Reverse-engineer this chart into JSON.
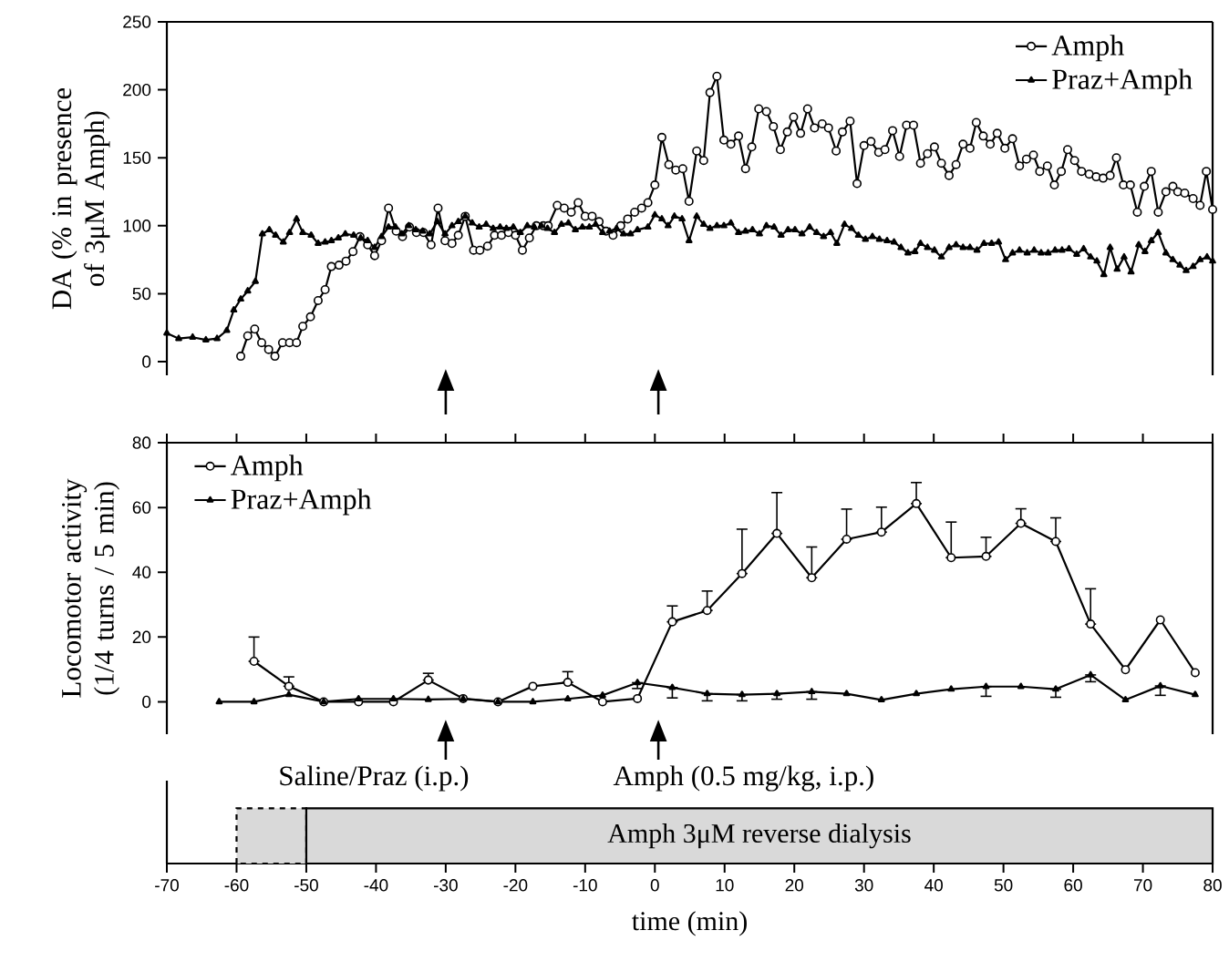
{
  "chart_data": [
    {
      "type": "line",
      "ylabel": "DA (% in presence of 3μM Amph)",
      "xlim": [
        -70,
        80
      ],
      "ylim": [
        -10,
        250
      ],
      "yticks": [
        0,
        50,
        100,
        150,
        200,
        250
      ],
      "tick_labels": "y",
      "legend": "top right",
      "series": [
        {
          "name": "Amph",
          "color": "#000000",
          "marker": "circle",
          "x": [
            -59.4,
            -58.4,
            -57.4,
            -56.4,
            -55.4,
            -54.5,
            -53.4,
            -52.4,
            -51.4,
            -50.5,
            -49.4,
            -48.3,
            -47.3,
            -46.4,
            -45.3,
            -44.3,
            -43.3,
            -42.3,
            -41.2,
            -40.2,
            -39.2,
            -38.2,
            -37.1,
            -36.2,
            -35.2,
            -34.2,
            -33.2,
            -32.1,
            -31.1,
            -30.1,
            -29.1,
            -28.2,
            -27.2,
            -26,
            -25.1,
            -24,
            -23,
            -22,
            -21,
            -20,
            -19,
            -18,
            -17,
            -16,
            -15.3,
            -14,
            -13,
            -12,
            -11,
            -10,
            -9,
            -8,
            -7,
            -6,
            -4.9,
            -3.9,
            -2.9,
            -1.9,
            -1,
            0,
            1,
            2,
            3,
            4,
            4.9,
            6,
            7,
            7.9,
            8.9,
            9.9,
            10.9,
            12,
            13,
            13.9,
            14.9,
            16,
            17,
            18,
            19,
            19.9,
            20.9,
            21.9,
            22.9,
            24,
            24.9,
            26,
            26.9,
            28,
            29,
            30,
            31,
            32.1,
            33,
            34.1,
            35.1,
            36.1,
            37.1,
            38.1,
            39.1,
            40.1,
            41.1,
            42.2,
            43.2,
            44.2,
            45.2,
            46.1,
            47.1,
            48.1,
            49.1,
            50.2,
            51.3,
            52.3,
            53.3,
            54.3,
            55.2,
            56.3,
            57.3,
            58.3,
            59.2,
            60.2,
            61.2,
            62.3,
            63.3,
            64.3,
            65.3,
            66.2,
            67.2,
            68.2,
            69.2,
            70.2,
            71.2,
            72.2,
            73.3,
            74.3,
            75,
            76,
            77.2,
            78.2,
            79.1,
            80
          ],
          "values": [
            4,
            19,
            24,
            14,
            9,
            4,
            14,
            14,
            14,
            26,
            33,
            45,
            53,
            70,
            71,
            74,
            81,
            92,
            86,
            78,
            89,
            113,
            96,
            92,
            99,
            95,
            95,
            86,
            113,
            89,
            87,
            93,
            107,
            82,
            82,
            85,
            93,
            93,
            95,
            93,
            82,
            91,
            100,
            100,
            100,
            115,
            113,
            110,
            117,
            107,
            107,
            103,
            96,
            93,
            100,
            105,
            110,
            113,
            117,
            130,
            165,
            145,
            141,
            142,
            118,
            155,
            148,
            198,
            210,
            163,
            160,
            166,
            142,
            158,
            186,
            184,
            173,
            156,
            169,
            180,
            168,
            186,
            172,
            175,
            172,
            155,
            169,
            177,
            131,
            159,
            162,
            154,
            156,
            170,
            151,
            174,
            174,
            146,
            153,
            158,
            146,
            137,
            145,
            160,
            157,
            176,
            166,
            160,
            168,
            157,
            164,
            144,
            149,
            152,
            140,
            144,
            130,
            140,
            156,
            148,
            140,
            138,
            136,
            135,
            137,
            150,
            130,
            130,
            110,
            129,
            140,
            110,
            125,
            129,
            125,
            124,
            120,
            115,
            140,
            112
          ]
        },
        {
          "name": "Praz+Amph",
          "color": "#000000",
          "marker": "triangle",
          "x": [
            -70,
            -68.3,
            -66.3,
            -64.4,
            -62.8,
            -61.4,
            -60.4,
            -59.4,
            -58.4,
            -57.3,
            -56.3,
            -55.3,
            -54.4,
            -53.3,
            -52.4,
            -51.4,
            -50.5,
            -49.3,
            -48.3,
            -47.3,
            -46.4,
            -45.4,
            -44.4,
            -43.2,
            -42.2,
            -41.2,
            -40.2,
            -39.2,
            -38.2,
            -37.2,
            -36.3,
            -35.3,
            -34.3,
            -33.3,
            -32.3,
            -31.2,
            -30.1,
            -29.1,
            -28.2,
            -27.2,
            -26.2,
            -25.2,
            -24.2,
            -23.2,
            -22.2,
            -21.3,
            -20.3,
            -19.3,
            -18.3,
            -17.3,
            -16.3,
            -15.4,
            -14.4,
            -13.4,
            -12.4,
            -11.4,
            -10.4,
            -9.4,
            -8.5,
            -7.5,
            -6.5,
            -5.5,
            -4.5,
            -3.5,
            -2.5,
            -1,
            0,
            1,
            1.9,
            2.8,
            3.9,
            4.9,
            6,
            7,
            7.9,
            8.9,
            9.9,
            10.9,
            12,
            13,
            14,
            15,
            16,
            17.1,
            18.1,
            19.1,
            20.1,
            21.1,
            22.2,
            23.2,
            24.2,
            25.2,
            26.1,
            27.2,
            28.2,
            29.2,
            30.2,
            31.2,
            32.2,
            33.3,
            34.3,
            35.3,
            36.3,
            37.3,
            38.1,
            39.1,
            40.1,
            41.1,
            42.2,
            43.2,
            44.2,
            45.2,
            46.2,
            47.2,
            48.3,
            49.3,
            50.3,
            51.3,
            52.3,
            53.4,
            54.4,
            55.4,
            56.4,
            57.4,
            58.4,
            59.4,
            60.5,
            61.5,
            62.5,
            63.4,
            64.4,
            65.3,
            66.3,
            67.3,
            68.3,
            69.4,
            70.3,
            71.2,
            72.2,
            73.3,
            74.3,
            75.3,
            76.2,
            77.2,
            78.2,
            79.2,
            80
          ],
          "values": [
            21,
            17,
            18,
            16,
            17,
            23,
            38,
            46,
            52,
            59,
            94,
            97,
            93,
            88,
            95,
            105,
            95,
            93,
            87,
            88,
            89,
            91,
            94,
            93,
            91,
            89,
            84,
            92,
            99,
            99,
            94,
            100,
            97,
            96,
            94,
            103,
            94,
            100,
            103,
            107,
            102,
            99,
            101,
            98,
            99,
            98,
            99,
            95,
            100,
            99,
            100,
            98,
            95,
            101,
            102,
            97,
            99,
            99,
            101,
            95,
            96,
            98,
            94,
            94,
            97,
            99,
            108,
            105,
            100,
            107,
            105,
            89,
            107,
            101,
            98,
            100,
            100,
            102,
            95,
            96,
            97,
            94,
            100,
            99,
            93,
            97,
            97,
            94,
            99,
            95,
            92,
            95,
            87,
            101,
            98,
            93,
            90,
            92,
            90,
            89,
            88,
            84,
            80,
            81,
            87,
            84,
            82,
            77,
            84,
            86,
            84,
            84,
            82,
            87,
            87,
            88,
            75,
            80,
            82,
            80,
            82,
            80,
            80,
            82,
            82,
            83,
            79,
            83,
            77,
            74,
            64,
            84,
            68,
            77,
            66,
            86,
            81,
            89,
            95,
            80,
            75,
            71,
            67,
            70,
            75,
            77,
            74
          ]
        }
      ]
    },
    {
      "type": "line",
      "ylabel": "Locomotor activity (1/4 turns / 5 min)",
      "xlim": [
        -70,
        80
      ],
      "xticks": [
        -70,
        -60,
        -50,
        -40,
        -30,
        -20,
        -10,
        0,
        10,
        20,
        30,
        40,
        50,
        60,
        70,
        80
      ],
      "ylim": [
        -10,
        80
      ],
      "yticks": [
        0,
        20,
        40,
        60,
        80
      ],
      "tick_labels": "y",
      "legend": "top left",
      "annotations": [
        "Saline/Praz (i.p.)",
        "Amph (0.5 mg/kg, i.p.)"
      ],
      "series": [
        {
          "name": "Amph",
          "color": "#000000",
          "marker": "circle",
          "x": [
            -57.5,
            -52.5,
            -47.5,
            -42.5,
            -37.5,
            -32.5,
            -27.5,
            -22.5,
            -17.5,
            -12.5,
            -7.5,
            -2.5,
            2.5,
            7.5,
            12.5,
            17.5,
            22.5,
            27.5,
            32.5,
            37.5,
            42.5,
            47.5,
            52.5,
            57.5,
            62.5,
            67.5,
            72.5,
            77.5
          ],
          "values": [
            12.5,
            4.8,
            0,
            0,
            0,
            6.7,
            1,
            0,
            4.8,
            6,
            0,
            1,
            24.7,
            28.2,
            39.6,
            52,
            38.3,
            50.2,
            52.4,
            61.2,
            44.5,
            44.9,
            55.1,
            49.5,
            24,
            9.9,
            25.3,
            9
          ],
          "errors": [
            [
              12.5,
              20
            ],
            [
              4.8,
              7.7
            ],
            null,
            null,
            null,
            [
              6.7,
              8.8
            ],
            null,
            null,
            null,
            [
              6,
              9.3
            ],
            null,
            null,
            [
              24.7,
              29.6
            ],
            [
              28.2,
              34.2
            ],
            [
              39.6,
              53.3
            ],
            [
              52,
              64.6
            ],
            [
              38.3,
              47.8
            ],
            [
              50.2,
              59.5
            ],
            [
              52.4,
              60.1
            ],
            [
              61.2,
              67.7
            ],
            [
              44.5,
              55.5
            ],
            [
              44.9,
              50.8
            ],
            [
              55.1,
              59.6
            ],
            [
              49.5,
              56.8
            ],
            [
              24,
              34.9
            ],
            null,
            null,
            null
          ]
        },
        {
          "name": "Praz+Amph",
          "color": "#000000",
          "marker": "triangle",
          "x": [
            -62.5,
            -57.5,
            -52.5,
            -47.5,
            -42.5,
            -37.5,
            -32.5,
            -27.5,
            -22.5,
            -17.5,
            -12.5,
            -7.5,
            -2.5,
            2.5,
            7.5,
            12.5,
            17.5,
            22.5,
            27.5,
            32.5,
            37.5,
            42.5,
            47.5,
            52.5,
            57.5,
            62.5,
            67.5,
            72.5,
            77.5
          ],
          "values": [
            0,
            0,
            2.2,
            0,
            0.9,
            0.9,
            0.7,
            0.9,
            0,
            0,
            0.9,
            2,
            5.9,
            4.4,
            2.5,
            2.2,
            2.5,
            3.1,
            2.5,
            0.6,
            2.5,
            3.9,
            4.7,
            4.7,
            3.9,
            8.3,
            0.6,
            4.9,
            2.2
          ],
          "errors": [
            null,
            null,
            null,
            null,
            null,
            null,
            null,
            null,
            null,
            null,
            null,
            null,
            [
              4.1,
              5.9
            ],
            [
              1.2,
              4.4
            ],
            [
              0.3,
              2.5
            ],
            [
              0.3,
              2.2
            ],
            [
              0.8,
              2.5
            ],
            [
              0.8,
              3.1
            ],
            null,
            null,
            null,
            null,
            [
              1.7,
              4.7
            ],
            null,
            [
              1.4,
              3.9
            ],
            [
              6.2,
              8.3
            ],
            null,
            [
              2,
              4.9
            ],
            null
          ]
        }
      ]
    },
    {
      "type": "bar",
      "orientation": "horizontal",
      "categories": [
        null
      ],
      "xlabel": "time (min)",
      "xlim": [
        -70,
        80
      ],
      "xticks": [
        -70,
        -60,
        -50,
        -40,
        -30,
        -20,
        -10,
        0,
        10,
        20,
        30,
        40,
        50,
        60,
        70,
        80
      ],
      "series": [
        {
          "color": "#d9d9d9",
          "line_style": "dashed",
          "base": [
            -60
          ],
          "values": [
            10
          ]
        },
        {
          "name": "Amph 3μM reverse dialysis",
          "color": "#d9d9d9",
          "base": [
            -50
          ],
          "values": [
            130
          ]
        }
      ]
    }
  ]
}
